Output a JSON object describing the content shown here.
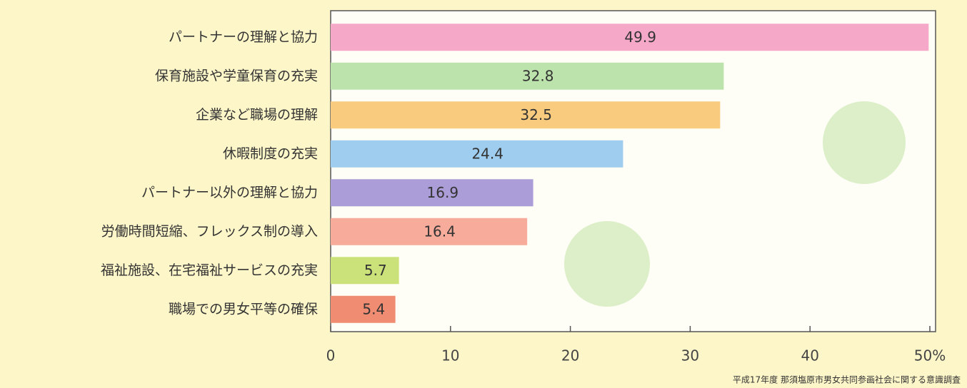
{
  "chart_data": {
    "type": "bar",
    "orientation": "horizontal",
    "categories": [
      "パートナーの理解と協力",
      "保育施設や学童保育の充実",
      "企業など職場の理解",
      "休暇制度の充実",
      "パートナー以外の理解と協力",
      "労働時間短縮、フレックス制の導入",
      "福祉施設、在宅福祉サービスの充実",
      "職場での男女平等の確保"
    ],
    "values": [
      49.9,
      32.8,
      32.5,
      24.4,
      16.9,
      16.4,
      5.7,
      5.4
    ],
    "colors": [
      "#f6a8c8",
      "#bde3ad",
      "#f9cb7e",
      "#9fcdef",
      "#ab9dd8",
      "#f6ab9b",
      "#cbe27a",
      "#f08c72"
    ],
    "xlim": [
      0,
      50
    ],
    "xticks": [
      0,
      10,
      20,
      30,
      40,
      {
        "value": 50,
        "label": "50%"
      }
    ],
    "grid": false,
    "source": "平成17年度 那須塩原市男女共同参画社会に関する意識調査"
  }
}
